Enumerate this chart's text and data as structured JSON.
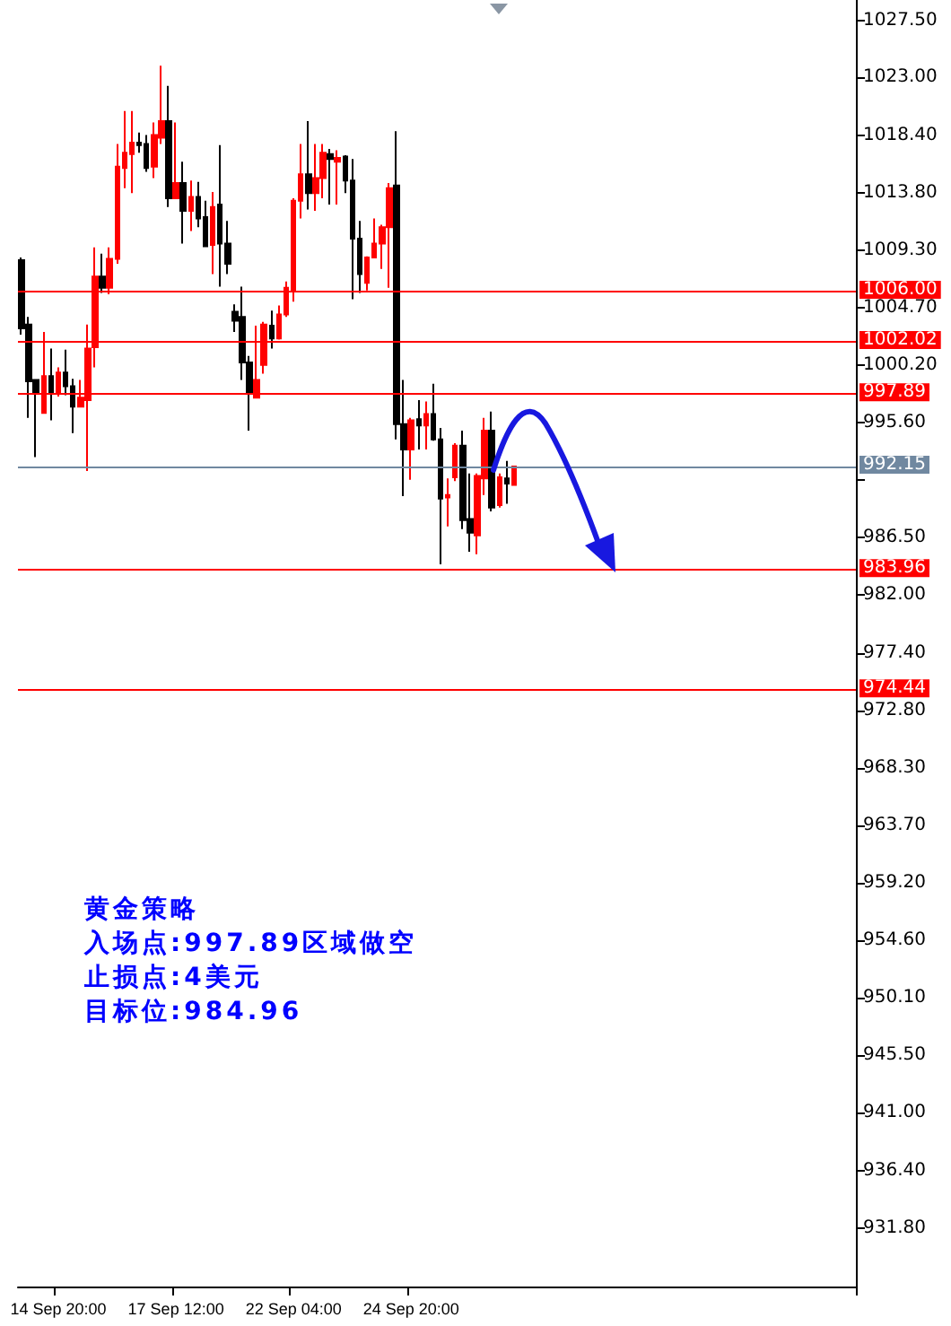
{
  "chart_data": {
    "type": "candlestick",
    "categories": [
      null,
      null,
      null,
      null,
      null,
      "14 Sep 20:00",
      null,
      null,
      null,
      null,
      null,
      null,
      null,
      null,
      null,
      null,
      null,
      null,
      null,
      null,
      null,
      "17 Sep 12:00",
      null,
      null,
      null,
      null,
      null,
      null,
      null,
      null,
      null,
      null,
      null,
      null,
      null,
      null,
      null,
      "22 Sep 04:00",
      null,
      null,
      null,
      null,
      null,
      null,
      null,
      null,
      null,
      null,
      null,
      null,
      null,
      null,
      null,
      "24 Sep 20:00",
      null,
      null,
      null,
      null,
      null,
      null,
      null,
      null,
      null,
      null,
      null,
      null,
      null,
      null,
      null,
      null,
      null,
      null,
      null,
      null,
      null,
      null,
      null,
      null,
      null,
      null,
      null,
      null,
      null,
      null,
      null,
      null,
      null,
      null,
      null,
      null,
      null,
      null,
      null,
      null,
      null,
      null,
      null,
      null,
      null,
      null,
      null,
      null,
      null,
      null,
      null,
      null,
      null,
      null,
      null,
      null,
      null,
      null,
      null,
      null
    ],
    "ohlc": [
      [
        1008.5,
        1008.7,
        1002.6,
        1003.1
      ],
      [
        1003.4,
        1004.0,
        996.0,
        998.9
      ],
      [
        999.0,
        999.0,
        992.9,
        998.0
      ],
      [
        996.4,
        1002.8,
        996.4,
        999.3
      ],
      [
        999.3,
        1001.5,
        995.8,
        998.0
      ],
      [
        997.9,
        1000.0,
        997.7,
        999.6
      ],
      [
        999.6,
        1001.4,
        997.8,
        998.5
      ],
      [
        998.5,
        999.1,
        994.8,
        996.9
      ],
      [
        996.9,
        999.0,
        996.9,
        997.6
      ],
      [
        997.4,
        1003.4,
        991.8,
        1001.5
      ],
      [
        1001.6,
        1009.5,
        1000.0,
        1007.2
      ],
      [
        1007.2,
        1009.0,
        1005.9,
        1006.3
      ],
      [
        1006.3,
        1009.5,
        1005.8,
        1008.6
      ],
      [
        1008.6,
        1017.7,
        1008.2,
        1015.9
      ],
      [
        1015.8,
        1020.3,
        1014.2,
        1017.0
      ],
      [
        1016.9,
        1020.3,
        1013.8,
        1017.8
      ],
      [
        1017.8,
        1018.6,
        1017.0,
        1017.6
      ],
      [
        1017.7,
        1018.4,
        1015.5,
        1015.8
      ],
      [
        1015.9,
        1019.4,
        1015.0,
        1018.4
      ],
      [
        1018.2,
        1023.9,
        1017.7,
        1019.5
      ],
      [
        1019.5,
        1022.3,
        1012.7,
        1013.4
      ],
      [
        1013.4,
        1019.4,
        1013.4,
        1014.6
      ],
      [
        1014.6,
        1016.3,
        1009.8,
        1012.4
      ],
      [
        1012.4,
        1014.8,
        1010.8,
        1013.5
      ],
      [
        1013.5,
        1014.7,
        1011.1,
        1011.8
      ],
      [
        1011.9,
        1013.2,
        1009.6,
        1009.6
      ],
      [
        1009.7,
        1013.9,
        1007.4,
        1012.7
      ],
      [
        1012.9,
        1017.6,
        1006.4,
        1009.8
      ],
      [
        1009.8,
        1011.6,
        1007.4,
        1008.2
      ],
      [
        1004.4,
        1005.0,
        1002.8,
        1003.7
      ],
      [
        1004.0,
        1006.4,
        999.0,
        1000.4
      ],
      [
        1000.4,
        1000.9,
        995.0,
        997.9
      ],
      [
        997.6,
        1003.3,
        997.6,
        999.0
      ],
      [
        1000.2,
        1003.6,
        999.5,
        1003.4
      ],
      [
        1003.3,
        1004.5,
        1001.5,
        1002.3
      ],
      [
        1002.3,
        1004.9,
        1002.2,
        1004.2
      ],
      [
        1004.2,
        1006.8,
        1004.0,
        1006.3
      ],
      [
        1006.1,
        1013.4,
        1005.2,
        1013.2
      ],
      [
        1013.2,
        1017.7,
        1011.8,
        1015.3
      ],
      [
        1015.3,
        1019.5,
        1012.5,
        1013.8
      ],
      [
        1013.8,
        1017.7,
        1012.4,
        1015.0
      ],
      [
        1015.0,
        1017.7,
        1013.4,
        1017.0
      ],
      [
        1016.9,
        1017.3,
        1012.9,
        1016.5
      ],
      [
        1016.3,
        1017.2,
        1012.9,
        1016.6
      ],
      [
        1016.7,
        1016.8,
        1013.8,
        1014.8
      ],
      [
        1014.8,
        1016.5,
        1005.4,
        1010.2
      ],
      [
        1010.2,
        1011.6,
        1005.9,
        1007.4
      ],
      [
        1006.7,
        1008.8,
        1006.1,
        1008.7
      ],
      [
        1008.7,
        1011.8,
        1008.7,
        1009.8
      ],
      [
        1009.8,
        1011.3,
        1007.8,
        1011.1
      ],
      [
        1011.1,
        1014.6,
        1006.3,
        1014.2
      ],
      [
        1014.4,
        1018.7,
        994.3,
        995.5
      ],
      [
        995.5,
        999.0,
        989.8,
        993.5
      ],
      [
        993.5,
        996.0,
        991.1,
        995.8
      ],
      [
        995.9,
        997.4,
        993.5,
        995.4
      ],
      [
        995.4,
        997.3,
        993.5,
        996.3
      ],
      [
        996.3,
        998.7,
        994.2,
        994.3
      ],
      [
        994.3,
        995.2,
        984.4,
        989.6
      ],
      [
        989.7,
        991.2,
        987.4,
        989.9
      ],
      [
        991.3,
        994.0,
        991.0,
        993.8
      ],
      [
        993.8,
        995.0,
        987.2,
        987.9
      ],
      [
        988.0,
        991.6,
        985.4,
        986.9
      ],
      [
        986.7,
        991.6,
        985.2,
        991.4
      ],
      [
        991.2,
        996.0,
        989.9,
        995.0
      ],
      [
        995.0,
        996.5,
        988.6,
        988.9
      ],
      [
        989.1,
        991.6,
        988.9,
        991.3
      ],
      [
        991.2,
        992.6,
        989.2,
        990.8
      ],
      [
        990.7,
        992.2,
        990.7,
        992.15
      ],
      null,
      null,
      null,
      null,
      null,
      null,
      null,
      null,
      null,
      null,
      null,
      null,
      null,
      null,
      null,
      null,
      null,
      null,
      null,
      null,
      null,
      null,
      null,
      null,
      null,
      null,
      null,
      null,
      null,
      null,
      null,
      null,
      null,
      null,
      null,
      null,
      null,
      null,
      null,
      null,
      null,
      null,
      null,
      null,
      null,
      null
    ],
    "colors": [
      "#000000",
      "#000000",
      "#000000",
      "#ff0000",
      "#000000",
      "#ff0000",
      "#000000",
      "#000000",
      "#ff0000",
      "#ff0000",
      "#ff0000",
      "#000000",
      "#ff0000",
      "#ff0000",
      "#ff0000",
      "#ff0000",
      "#000000",
      "#000000",
      "#ff0000",
      "#ff0000",
      "#000000",
      "#ff0000",
      "#000000",
      "#ff0000",
      "#000000",
      "#000000",
      "#ff0000",
      "#000000",
      "#000000",
      "#000000",
      "#000000",
      "#000000",
      "#ff0000",
      "#ff0000",
      "#000000",
      "#ff0000",
      "#ff0000",
      "#ff0000",
      "#ff0000",
      "#000000",
      "#ff0000",
      "#ff0000",
      "#000000",
      "#ff0000",
      "#000000",
      "#000000",
      "#000000",
      "#ff0000",
      "#ff0000",
      "#ff0000",
      "#ff0000",
      "#000000",
      "#000000",
      "#ff0000",
      "#000000",
      "#ff0000",
      "#000000",
      "#000000",
      "#ff0000",
      "#ff0000",
      "#000000",
      "#000000",
      "#ff0000",
      "#ff0000",
      "#000000",
      "#ff0000",
      "#000000",
      "#ff0000",
      null,
      null,
      null,
      null,
      null,
      null,
      null,
      null,
      null,
      null,
      null,
      null,
      null,
      null,
      null,
      null,
      null,
      null,
      null,
      null,
      null,
      null,
      null,
      null,
      null,
      null,
      null,
      null,
      null,
      null,
      null,
      null,
      null,
      null,
      null,
      null,
      null,
      null,
      null,
      null,
      null,
      null,
      null,
      null,
      null,
      null
    ],
    "ylim": [
      927.2,
      1029.1
    ],
    "yticks": [
      {
        "value": 1027.5,
        "label": "1027.50"
      },
      {
        "value": 1023,
        "label": "1023.00"
      },
      {
        "value": 1018.4,
        "label": "1018.40"
      },
      {
        "value": 1013.8,
        "label": "1013.80"
      },
      {
        "value": 1009.3,
        "label": "1009.30"
      },
      {
        "value": 1004.7,
        "label": "1004.70"
      },
      {
        "value": 1000.2,
        "label": "1000.20"
      },
      {
        "value": 995.6,
        "label": "995.60"
      },
      {
        "value": 991.1,
        "label": null
      },
      {
        "value": 986.5,
        "label": "986.50"
      },
      {
        "value": 982,
        "label": "982.00"
      },
      {
        "value": 977.4,
        "label": "977.40"
      },
      {
        "value": 972.8,
        "label": "972.80"
      },
      {
        "value": 968.3,
        "label": "968.30"
      },
      {
        "value": 963.7,
        "label": "963.70"
      },
      {
        "value": 959.2,
        "label": "959.20"
      },
      {
        "value": 954.6,
        "label": "954.60"
      },
      {
        "value": 950.1,
        "label": "950.10"
      },
      {
        "value": 945.5,
        "label": "945.50"
      },
      {
        "value": 941,
        "label": "941.00"
      },
      {
        "value": 936.4,
        "label": "936.40"
      },
      {
        "value": 931.8,
        "label": "931.80"
      }
    ],
    "ref_lines": [
      {
        "axis": "y",
        "value": 1006.0,
        "label": "1006.00",
        "color": "#ff0000"
      },
      {
        "axis": "y",
        "value": 1002.02,
        "label": "1002.02",
        "color": "#ff0000"
      },
      {
        "axis": "y",
        "value": 997.89,
        "label": "997.89",
        "color": "#ff0000"
      },
      {
        "axis": "y",
        "value": 992.15,
        "label": "992.15",
        "color": "#7088a0"
      },
      {
        "axis": "y",
        "value": 983.96,
        "label": "983.96",
        "color": "#ff0000"
      },
      {
        "axis": "y",
        "value": 974.44,
        "label": "974.44",
        "color": "#ff0000"
      }
    ],
    "annotations": [
      "黄金策略",
      "入场点:997.89区域做空",
      "止损点:4美元",
      "目标位:984.96"
    ],
    "grid": false
  }
}
